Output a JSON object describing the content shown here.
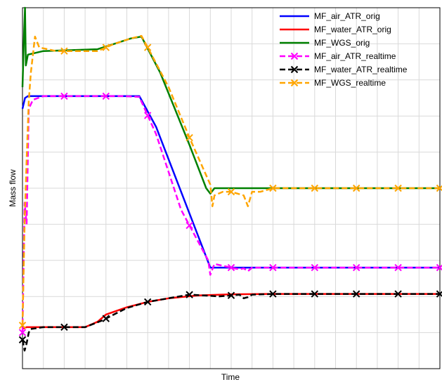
{
  "chart_data": {
    "type": "line",
    "title": "",
    "xlabel": "Time",
    "ylabel": "Mass flow",
    "xlim": [
      0,
      100
    ],
    "ylim": [
      0,
      100
    ],
    "grid": true,
    "legend_position": "top-right",
    "series": [
      {
        "name": "MF_air_ATR_orig",
        "color": "#0000ff",
        "dash": "solid",
        "marker": "none",
        "points": [
          [
            0,
            72
          ],
          [
            0.6,
            75
          ],
          [
            1.3,
            75.5
          ],
          [
            20,
            75.5
          ],
          [
            28,
            75.5
          ],
          [
            32,
            67
          ],
          [
            45,
            28
          ],
          [
            100,
            28
          ]
        ]
      },
      {
        "name": "MF_water_ATR_orig",
        "color": "#ff0000",
        "dash": "solid",
        "marker": "none",
        "points": [
          [
            0,
            11
          ],
          [
            1,
            11.5
          ],
          [
            5,
            11.5
          ],
          [
            15,
            11.5
          ],
          [
            18,
            13
          ],
          [
            20,
            15
          ],
          [
            25,
            17
          ],
          [
            30,
            18.5
          ],
          [
            35,
            19.5
          ],
          [
            42,
            20.3
          ],
          [
            50,
            20.6
          ],
          [
            60,
            20.7
          ],
          [
            100,
            20.7
          ]
        ]
      },
      {
        "name": "MF_WGS_orig",
        "color": "#008000",
        "dash": "solid",
        "marker": "none",
        "points": [
          [
            0,
            78
          ],
          [
            0.4,
            94
          ],
          [
            0.6,
            100
          ],
          [
            0.8,
            84
          ],
          [
            1.3,
            87
          ],
          [
            5,
            88
          ],
          [
            18,
            88.5
          ],
          [
            22,
            90
          ],
          [
            26,
            91.5
          ],
          [
            28.5,
            92
          ],
          [
            33,
            82
          ],
          [
            40,
            62
          ],
          [
            44,
            50
          ],
          [
            45,
            48.5
          ],
          [
            46,
            50
          ],
          [
            50,
            50
          ],
          [
            100,
            50
          ]
        ]
      },
      {
        "name": "MF_air_ATR_realtime",
        "color": "#ff00ff",
        "dash": "dashed",
        "marker": "x",
        "points": [
          [
            0,
            10
          ],
          [
            0.5,
            46
          ],
          [
            1,
            40
          ],
          [
            1.5,
            72
          ],
          [
            2.5,
            74.5
          ],
          [
            5,
            75.5
          ],
          [
            10,
            75.5
          ],
          [
            18.5,
            75.5
          ],
          [
            24,
            75.5
          ],
          [
            28,
            75.3
          ],
          [
            32,
            65
          ],
          [
            38,
            44
          ],
          [
            44.5,
            30
          ],
          [
            45,
            26
          ],
          [
            45.3,
            27
          ],
          [
            46,
            29
          ],
          [
            50,
            28
          ],
          [
            52,
            27.5
          ],
          [
            53,
            27.8
          ],
          [
            54,
            27
          ],
          [
            55,
            28
          ],
          [
            60,
            28
          ],
          [
            70,
            28
          ],
          [
            80,
            28
          ],
          [
            90,
            28
          ],
          [
            100,
            28
          ]
        ]
      },
      {
        "name": "MF_water_ATR_realtime",
        "color": "#000000",
        "dash": "dashed",
        "marker": "x",
        "points": [
          [
            0,
            8
          ],
          [
            0.5,
            5
          ],
          [
            1,
            7
          ],
          [
            1.5,
            10
          ],
          [
            2,
            11
          ],
          [
            5,
            11.5
          ],
          [
            10,
            11.5
          ],
          [
            15,
            11.5
          ],
          [
            19,
            13.3
          ],
          [
            25,
            16.8
          ],
          [
            30,
            18.5
          ],
          [
            35,
            19.5
          ],
          [
            40,
            20.5
          ],
          [
            45,
            20.2
          ],
          [
            47,
            20
          ],
          [
            50,
            20.3
          ],
          [
            52,
            20.5
          ],
          [
            53,
            19.5
          ],
          [
            54,
            19.8
          ],
          [
            55,
            20.5
          ],
          [
            60,
            20.7
          ],
          [
            70,
            20.7
          ],
          [
            80,
            20.7
          ],
          [
            90,
            20.7
          ],
          [
            100,
            20.7
          ]
        ]
      },
      {
        "name": "MF_WGS_realtime",
        "color": "#ffa500",
        "dash": "dashed",
        "marker": "x",
        "points": [
          [
            0,
            12
          ],
          [
            0.5,
            40
          ],
          [
            1,
            58
          ],
          [
            1.5,
            74
          ],
          [
            2,
            82
          ],
          [
            3,
            92
          ],
          [
            4,
            89
          ],
          [
            8,
            88
          ],
          [
            12,
            88
          ],
          [
            18,
            88
          ],
          [
            22,
            90
          ],
          [
            26,
            91.5
          ],
          [
            28.5,
            92.2
          ],
          [
            30,
            89
          ],
          [
            35,
            78
          ],
          [
            40,
            64
          ],
          [
            45,
            51
          ],
          [
            45.5,
            45
          ],
          [
            46,
            48
          ],
          [
            48,
            49
          ],
          [
            50,
            49
          ],
          [
            53,
            48
          ],
          [
            54,
            45
          ],
          [
            55,
            49
          ],
          [
            57,
            49
          ],
          [
            60,
            50
          ],
          [
            70,
            50
          ],
          [
            80,
            50
          ],
          [
            90,
            50
          ],
          [
            100,
            50
          ]
        ]
      }
    ]
  }
}
